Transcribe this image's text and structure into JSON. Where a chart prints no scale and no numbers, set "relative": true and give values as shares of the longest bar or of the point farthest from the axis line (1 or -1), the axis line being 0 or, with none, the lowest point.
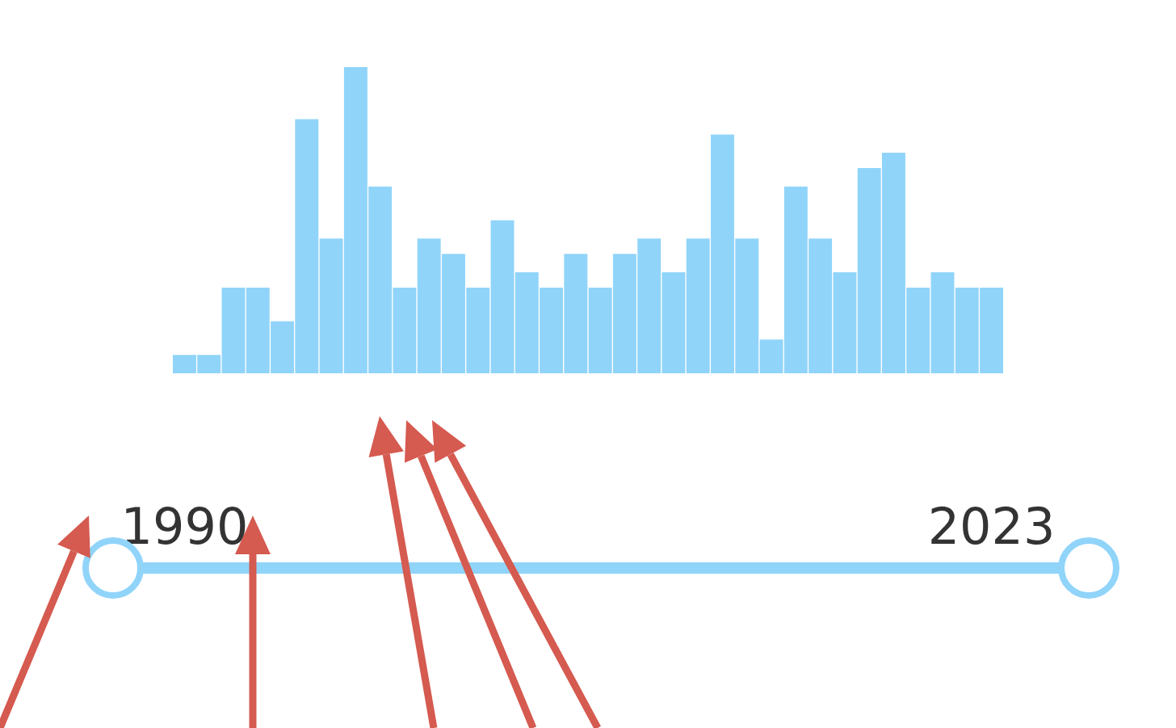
{
  "chart_data": {
    "type": "bar",
    "relative": true,
    "color": "#90d4fa",
    "categories": [
      "1990",
      null,
      null,
      null,
      null,
      null,
      null,
      null,
      null,
      null,
      null,
      null,
      null,
      null,
      null,
      null,
      null,
      null,
      null,
      null,
      null,
      null,
      null,
      null,
      null,
      null,
      null,
      null,
      null,
      null,
      null,
      null,
      null,
      "2023"
    ],
    "values": [
      0.06,
      0.06,
      0.28,
      0.28,
      0.17,
      0.83,
      0.44,
      1,
      0.61,
      0.28,
      0.44,
      0.39,
      0.28,
      0.5,
      0.33,
      0.28,
      0.39,
      0.28,
      0.39,
      0.44,
      0.33,
      0.44,
      0.78,
      0.44,
      0.11,
      0.61,
      0.44,
      0.33,
      0.67,
      0.72,
      0.28,
      0.33,
      0.28,
      0.28
    ]
  }
}
